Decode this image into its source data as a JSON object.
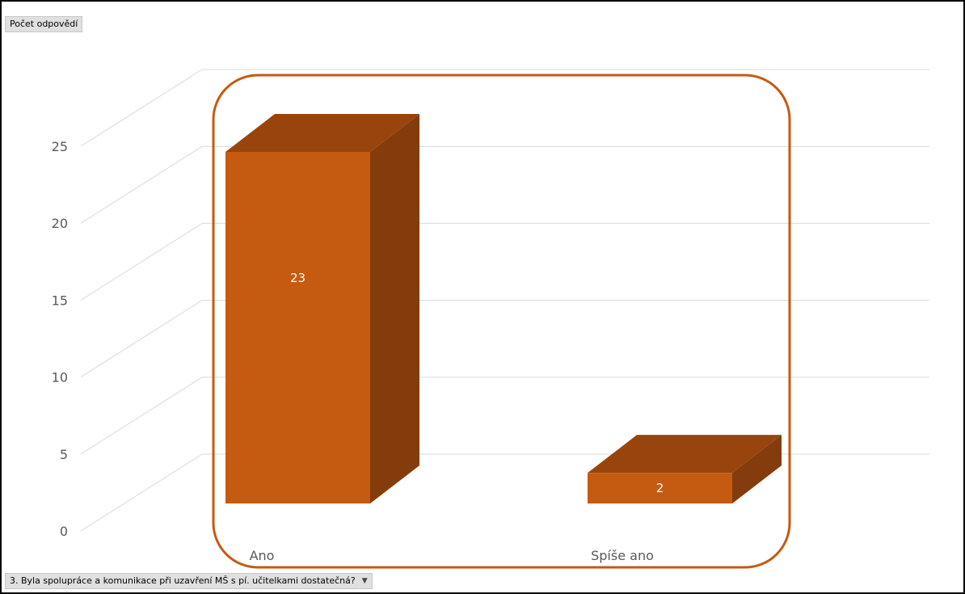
{
  "field_buttons": {
    "measure": "Počet odpovědí",
    "axis_field": "3. Byla spolupráce a komunikace při uzavření MŠ s pí. učitelkami dostatečná?"
  },
  "colors": {
    "bar_front": "#c55a11",
    "bar_top": "#9a440d",
    "bar_side": "#843c0c",
    "grid": "#d9d9d9",
    "highlight": "#c55a11"
  },
  "chart_data": {
    "type": "bar",
    "style": "3d-column",
    "categories": [
      "Ano",
      "Spíše ano"
    ],
    "values": [
      23,
      2
    ],
    "data_labels": [
      "23",
      "2"
    ],
    "y_ticks": [
      0,
      5,
      10,
      15,
      20,
      25
    ],
    "ylim": [
      0,
      25
    ],
    "grid": true,
    "legend": "none",
    "title": "",
    "xlabel": "",
    "ylabel": ""
  }
}
